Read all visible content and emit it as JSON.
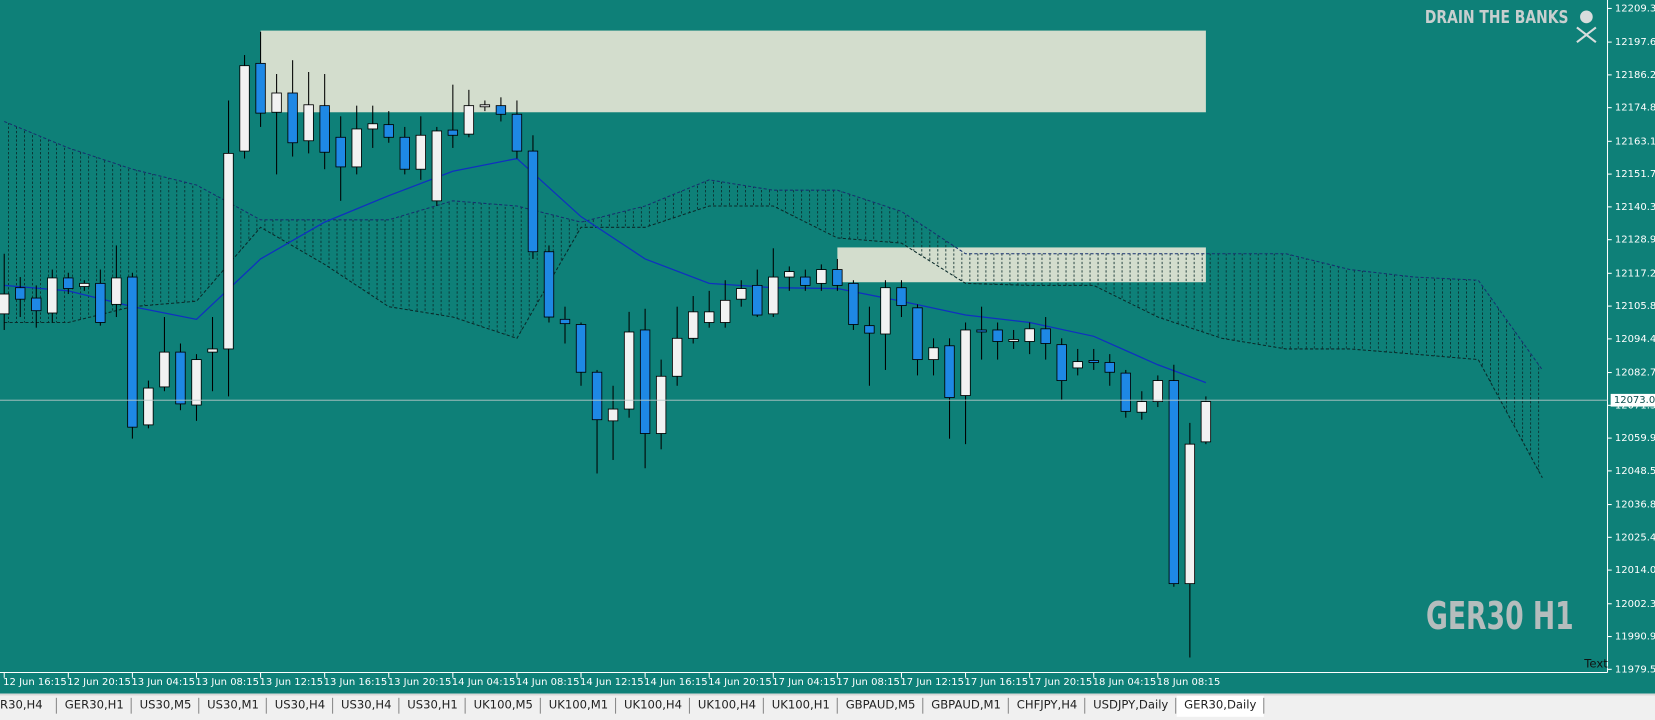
{
  "chart_data": {
    "type": "candlestick",
    "symbol_label": "GER30 H1",
    "watermark": "DRAIN THE BANKS",
    "corner_text": "Text",
    "categories": [
      "12 Jun 16:15",
      null,
      null,
      null,
      "12 Jun 20:15",
      null,
      null,
      null,
      "13 Jun 04:15",
      null,
      null,
      null,
      "13 Jun 08:15",
      null,
      null,
      null,
      "13 Jun 12:15",
      null,
      null,
      null,
      "13 Jun 16:15",
      null,
      null,
      null,
      "13 Jun 20:15",
      null,
      null,
      null,
      "14 Jun 04:15",
      null,
      null,
      null,
      "14 Jun 08:15",
      null,
      null,
      null,
      "14 Jun 12:15",
      null,
      null,
      null,
      "14 Jun 16:15",
      null,
      null,
      null,
      "14 Jun 20:15",
      null,
      null,
      null,
      "17 Jun 04:15",
      null,
      null,
      null,
      "17 Jun 08:15",
      null,
      null,
      null,
      "17 Jun 12:15",
      null,
      null,
      null,
      "17 Jun 16:15",
      null,
      null,
      null,
      "17 Jun 20:15",
      null,
      null,
      null,
      "18 Jun 04:15",
      null,
      null,
      null,
      "18 Jun 08:15",
      null,
      null,
      null
    ],
    "open": [
      12103.1,
      12112.2,
      12108.6,
      12103.4,
      12115.6,
      12112.6,
      12113.7,
      12106.4,
      12115.9,
      12064.5,
      12077.7,
      12089.8,
      12071.4,
      12089.8,
      12090.9,
      12159.7,
      12190.2,
      12173.2,
      12179.9,
      12163.3,
      12175.5,
      12164.5,
      12154.2,
      12167.4,
      12168.9,
      12164.5,
      12153.4,
      12142.4,
      12167.0,
      12165.6,
      12175.1,
      12175.5,
      12172.5,
      12159.7,
      12124.7,
      12101.2,
      12099.4,
      12082.8,
      12065.9,
      12070.0,
      12097.5,
      12061.5,
      12081.4,
      12094.6,
      12100.1,
      12100.1,
      12108.2,
      12113.0,
      12103.1,
      12115.9,
      12115.9,
      12113.7,
      12118.5,
      12113.7,
      12099.0,
      12096.1,
      12112.2,
      12105.2,
      12087.2,
      12092.0,
      12074.7,
      12097.5,
      12097.5,
      12093.5,
      12093.5,
      12097.9,
      12092.4,
      12084.3,
      12086.9,
      12086.2,
      12082.5,
      12068.9,
      12072.6,
      12079.9,
      12009.3,
      12058.6
    ],
    "high": [
      12124.0,
      12115.9,
      12113.0,
      12118.5,
      12117.4,
      12114.8,
      12118.5,
      12126.9,
      12117.4,
      12079.9,
      12102.0,
      12092.8,
      12089.1,
      12102.0,
      12177.3,
      12193.1,
      12201.2,
      12186.5,
      12191.3,
      12187.2,
      12186.5,
      12171.8,
      12175.5,
      12175.5,
      12173.6,
      12168.1,
      12171.8,
      12168.1,
      12182.8,
      12181.0,
      12177.3,
      12178.4,
      12177.3,
      12165.2,
      12126.9,
      12105.6,
      12100.1,
      12083.6,
      12078.1,
      12103.8,
      12104.9,
      12087.2,
      12105.6,
      12109.3,
      12111.1,
      12114.8,
      12114.8,
      12118.5,
      12125.9,
      12119.6,
      12118.5,
      12120.3,
      12122.2,
      12114.8,
      12105.6,
      12114.8,
      12114.8,
      12106.4,
      12094.6,
      12094.6,
      12100.1,
      12105.6,
      12100.1,
      12097.5,
      12100.1,
      12102.0,
      12094.6,
      12090.9,
      12090.9,
      12089.1,
      12083.6,
      12076.2,
      12081.7,
      12085.4,
      12065.2,
      12074.4
    ],
    "low": [
      12097.5,
      12102.0,
      12098.3,
      12100.1,
      12110.0,
      12111.1,
      12099.0,
      12102.0,
      12059.7,
      12063.3,
      12076.2,
      12069.6,
      12065.9,
      12076.2,
      12074.4,
      12157.1,
      12168.1,
      12151.6,
      12157.8,
      12158.9,
      12153.4,
      12142.4,
      12151.6,
      12160.8,
      12162.6,
      12151.6,
      12149.7,
      12140.6,
      12160.8,
      12164.5,
      12173.6,
      12170.0,
      12157.1,
      12122.2,
      12100.1,
      12092.8,
      12078.1,
      12047.6,
      12052.3,
      12067.0,
      12049.4,
      12056.0,
      12078.1,
      12092.8,
      12098.3,
      12098.3,
      12105.6,
      12102.0,
      12102.0,
      12111.1,
      12111.1,
      12111.1,
      12111.1,
      12097.5,
      12078.1,
      12083.6,
      12102.0,
      12081.7,
      12081.7,
      12059.7,
      12057.8,
      12087.2,
      12087.2,
      12090.9,
      12089.1,
      12087.2,
      12073.3,
      12081.7,
      12083.6,
      12078.1,
      12067.0,
      12066.3,
      12070.7,
      12008.2,
      11983.6,
      12057.8
    ],
    "close": [
      12110.0,
      12108.2,
      12104.2,
      12115.6,
      12111.9,
      12113.7,
      12100.1,
      12115.6,
      12063.7,
      12077.3,
      12089.8,
      12071.8,
      12087.2,
      12090.9,
      12158.9,
      12189.4,
      12172.9,
      12179.9,
      12162.6,
      12175.8,
      12159.3,
      12154.2,
      12167.4,
      12169.2,
      12164.5,
      12153.4,
      12165.2,
      12166.7,
      12165.2,
      12175.5,
      12175.8,
      12172.5,
      12159.7,
      12124.7,
      12102.0,
      12099.7,
      12082.8,
      12066.3,
      12070.0,
      12096.8,
      12061.5,
      12081.4,
      12094.6,
      12103.8,
      12103.8,
      12107.8,
      12111.9,
      12102.7,
      12115.9,
      12117.8,
      12113.0,
      12118.5,
      12113.0,
      12099.4,
      12096.4,
      12112.2,
      12106.0,
      12087.2,
      12091.3,
      12074.0,
      12097.5,
      12096.8,
      12093.5,
      12094.2,
      12097.9,
      12092.8,
      12079.9,
      12086.5,
      12086.2,
      12082.8,
      12069.2,
      12072.6,
      12079.9,
      12009.3,
      12057.8,
      12072.6
    ],
    "bull_color": "#f2f2f2",
    "bear_color": "#1e88e5",
    "ma": {
      "color": "#1030c0",
      "x": [
        0,
        4,
        8,
        12,
        16,
        20,
        24,
        28,
        32,
        36,
        40,
        44,
        48,
        52,
        56,
        60,
        64,
        68,
        72,
        75
      ],
      "values": [
        12113.0,
        12111.1,
        12105.6,
        12101.2,
        12122.2,
        12135.0,
        12144.2,
        12152.7,
        12157.1,
        12136.9,
        12122.2,
        12113.7,
        12112.2,
        12111.9,
        12107.5,
        12102.7,
        12100.1,
        12095.3,
        12085.4,
        12079.2
      ]
    },
    "cloud": {
      "x": [
        0,
        4,
        8,
        12,
        16,
        20,
        24,
        28,
        32,
        36,
        40,
        44,
        48,
        52,
        56,
        60,
        64,
        68,
        72,
        76,
        80,
        84,
        88,
        92,
        96
      ],
      "span_a": [
        12170.0,
        12160.8,
        12153.4,
        12147.9,
        12135.8,
        12135.8,
        12135.8,
        12142.4,
        12140.6,
        12135.0,
        12140.6,
        12149.7,
        12146.1,
        12146.1,
        12138.7,
        12124.0,
        12124.0,
        12124.0,
        12124.0,
        12124.0,
        12124.0,
        12118.5,
        12115.9,
        12114.8,
        12083.6
      ],
      "span_b": [
        12100.1,
        12100.1,
        12105.6,
        12107.5,
        12133.2,
        12120.3,
        12105.6,
        12102.0,
        12094.6,
        12133.2,
        12133.2,
        12140.6,
        12140.6,
        12129.5,
        12127.7,
        12113.7,
        12113.0,
        12113.0,
        12102.0,
        12094.6,
        12090.9,
        12090.9,
        12089.1,
        12087.2,
        12046.1
      ],
      "color_a": "#17306e",
      "color_b": "#0a2a2a"
    },
    "zones": [
      {
        "start": 16,
        "end": 75,
        "top": 12201.6,
        "bottom": 12173.2
      },
      {
        "start": 52,
        "end": 75,
        "top": 12126.2,
        "bottom": 12114.1
      }
    ],
    "zone_color": "#d3ddcd",
    "current_price": 12073.07,
    "ylim": [
      11979.5,
      12209.3
    ],
    "yticks": [
      {
        "value": 12209.3,
        "label": "12209.30"
      },
      {
        "value": 12197.6,
        "label": "12197.60"
      },
      {
        "value": 12186.2,
        "label": "12186.20"
      },
      {
        "value": 12174.8,
        "label": "12174.80"
      },
      {
        "value": 12163.1,
        "label": "12163.10"
      },
      {
        "value": 12151.7,
        "label": "12151.70"
      },
      {
        "value": 12140.3,
        "label": "12140.30"
      },
      {
        "value": 12128.9,
        "label": "12128.90"
      },
      {
        "value": 12117.2,
        "label": "12117.20"
      },
      {
        "value": 12105.8,
        "label": "12105.80"
      },
      {
        "value": 12094.4,
        "label": "12094.40"
      },
      {
        "value": 12082.7,
        "label": "12082.70"
      },
      {
        "value": 12071.3,
        "label": "12071.30"
      },
      {
        "value": 12059.9,
        "label": "12059.90"
      },
      {
        "value": 12048.5,
        "label": "12048.50"
      },
      {
        "value": 12036.8,
        "label": "12036.80"
      },
      {
        "value": 12025.4,
        "label": "12025.40"
      },
      {
        "value": 12014,
        "label": "12014.00"
      },
      {
        "value": 12002.3,
        "label": "12002.30"
      },
      {
        "value": 11990.9,
        "label": "11990.90"
      },
      {
        "value": 11979.5,
        "label": "11979.50"
      }
    ],
    "background": "#0e8078"
  },
  "tabs": [
    "R30,H4",
    "GER30,H1",
    "US30,M5",
    "US30,M1",
    "US30,H4",
    "US30,H4",
    "US30,H1",
    "UK100,M5",
    "UK100,M1",
    "UK100,H4",
    "UK100,H4",
    "UK100,H1",
    "GBPAUD,M5",
    "GBPAUD,M1",
    "CHFJPY,H4",
    "USDJPY,Daily",
    "GER30,Daily"
  ],
  "active_tab": 16
}
